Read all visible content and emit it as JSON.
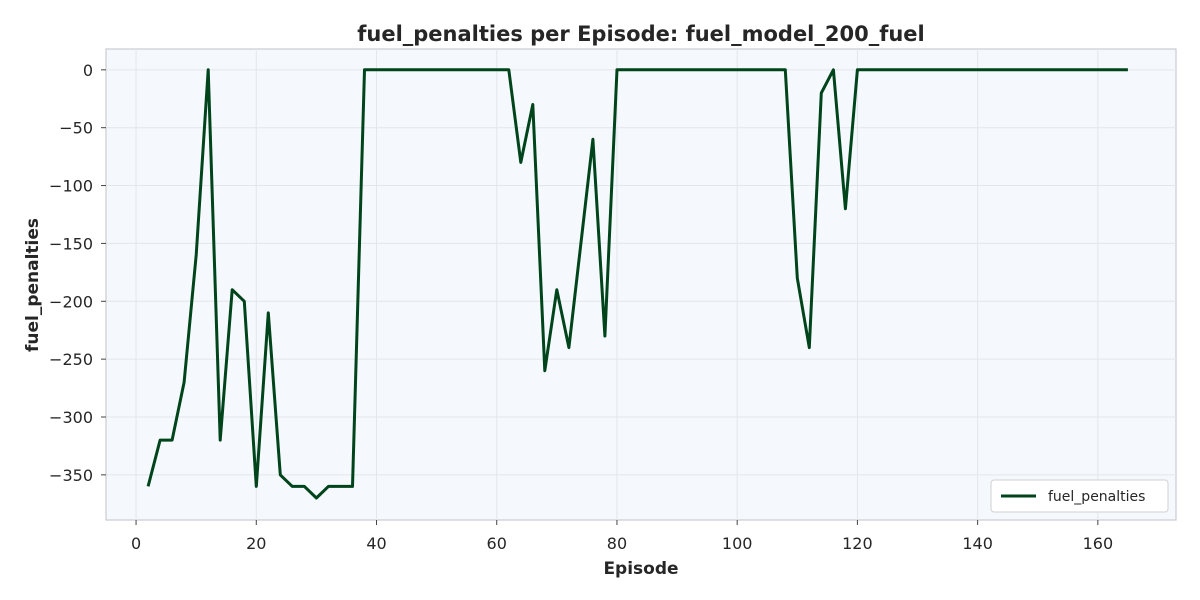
{
  "chart_data": {
    "type": "line",
    "title": "fuel_penalties per Episode: fuel_model_200_fuel",
    "xlabel": "Episode",
    "ylabel": "fuel_penalties",
    "xlim": [
      -5,
      173
    ],
    "ylim": [
      -389,
      18
    ],
    "xticks": [
      0,
      20,
      40,
      60,
      80,
      100,
      120,
      140,
      160
    ],
    "yticks": [
      0,
      -50,
      -100,
      -150,
      -200,
      -250,
      -300,
      -350
    ],
    "ytick_labels": [
      "0",
      "−50",
      "−100",
      "−150",
      "−200",
      "−250",
      "−300",
      "−350"
    ],
    "grid": true,
    "legend_position": "bottom-right",
    "line_color": "#00441b",
    "background_color": "#f5f9fd",
    "series": [
      {
        "name": "fuel_penalties",
        "x": [
          2,
          4,
          6,
          8,
          10,
          12,
          14,
          16,
          18,
          20,
          22,
          24,
          26,
          28,
          30,
          32,
          34,
          36,
          38,
          40,
          42,
          44,
          46,
          48,
          50,
          52,
          54,
          56,
          58,
          60,
          62,
          64,
          66,
          68,
          70,
          72,
          74,
          76,
          78,
          80,
          82,
          84,
          86,
          88,
          90,
          92,
          94,
          96,
          98,
          100,
          102,
          104,
          106,
          108,
          110,
          112,
          114,
          116,
          118,
          120,
          130,
          140,
          150,
          160,
          165
        ],
        "y": [
          -360,
          -320,
          -320,
          -270,
          -160,
          0,
          -320,
          -190,
          -200,
          -360,
          -210,
          -350,
          -360,
          -360,
          -370,
          -360,
          -360,
          -360,
          0,
          0,
          0,
          0,
          0,
          0,
          0,
          0,
          0,
          0,
          0,
          0,
          0,
          -80,
          -30,
          -260,
          -190,
          -240,
          -150,
          -60,
          -230,
          0,
          0,
          0,
          0,
          0,
          0,
          0,
          0,
          0,
          0,
          0,
          0,
          0,
          0,
          0,
          -180,
          -240,
          -20,
          0,
          -120,
          0,
          0,
          0,
          0,
          0,
          0
        ]
      }
    ]
  }
}
